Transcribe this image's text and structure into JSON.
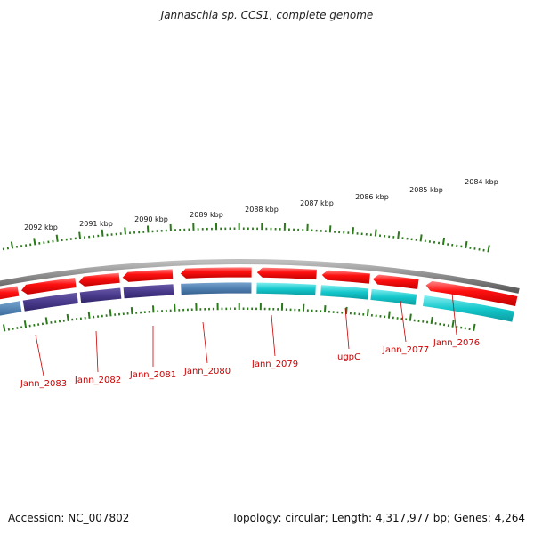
{
  "title": "Jannaschia sp. CCS1, complete genome",
  "footer": {
    "accession": "Accession: NC_007802",
    "summary": "Topology: circular; Length: 4,317,977 bp; Genes: 4,264"
  },
  "scale_labels": [
    "2092 kbp",
    "2091 kbp",
    "2090 kbp",
    "2089 kbp",
    "2088 kbp",
    "2087 kbp",
    "2086 kbp",
    "2085 kbp",
    "2084 kbp"
  ],
  "gene_labels": [
    "Jann_2083",
    "Jann_2082",
    "Jann_2081",
    "Jann_2080",
    "Jann_2079",
    "ugpC",
    "Jann_2077",
    "Jann_2076"
  ],
  "colors": {
    "backbone": "#8a8a8a",
    "forward_cds": "#ee0000",
    "reverse_dark": "#4a3a8c",
    "reverse_blue": "#4f7fb0",
    "reverse_cyan": "#14c8cc",
    "tick": "#2a7a1a",
    "label": "#cc0000"
  }
}
